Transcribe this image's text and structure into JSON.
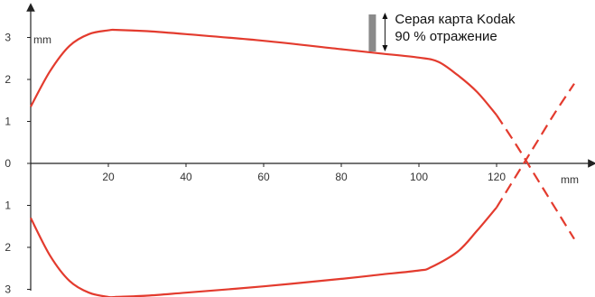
{
  "chart_data": {
    "type": "line",
    "xlabel": "mm",
    "ylabel": "mm",
    "xlim": [
      0,
      140
    ],
    "ylim": [
      -3,
      3
    ],
    "x_ticks": [
      20,
      40,
      60,
      80,
      100,
      120
    ],
    "x_tick_labels": [
      "20",
      "40",
      "60",
      "80",
      "100",
      "120"
    ],
    "y_ticks": [
      3,
      2,
      1,
      0,
      -1,
      -2,
      -3
    ],
    "y_tick_labels": [
      "3",
      "2",
      "1",
      "0",
      "1",
      "2",
      "3"
    ],
    "annotation": {
      "lines": [
        "Серая карта Kodak",
        "90 % отражение"
      ],
      "x": 88,
      "y": 3.15
    },
    "series": [
      {
        "part": "upper-solid",
        "style": "solid",
        "x": [
          0,
          5,
          10,
          15,
          20,
          22,
          30,
          40,
          60,
          80,
          90,
          100,
          105,
          110,
          115,
          120
        ],
        "y": [
          1.35,
          2.2,
          2.8,
          3.08,
          3.17,
          3.18,
          3.15,
          3.08,
          2.92,
          2.72,
          2.62,
          2.52,
          2.42,
          2.1,
          1.7,
          1.15
        ]
      },
      {
        "part": "upper-dashed",
        "style": "dashed",
        "x": [
          120,
          125,
          130,
          135,
          140
        ],
        "y": [
          1.15,
          0.45,
          -0.3,
          -1.05,
          -1.8
        ]
      },
      {
        "part": "lower-solid",
        "style": "solid",
        "x": [
          0,
          5,
          10,
          15,
          20,
          22,
          30,
          40,
          60,
          80,
          90,
          100,
          103,
          110,
          115,
          120
        ],
        "y": [
          -1.3,
          -2.2,
          -2.8,
          -3.08,
          -3.18,
          -3.18,
          -3.15,
          -3.08,
          -2.93,
          -2.75,
          -2.65,
          -2.55,
          -2.48,
          -2.1,
          -1.6,
          -1.05
        ]
      },
      {
        "part": "lower-dashed",
        "style": "dashed",
        "x": [
          120,
          125,
          130,
          135,
          140
        ],
        "y": [
          -1.05,
          -0.3,
          0.45,
          1.2,
          1.9
        ]
      }
    ],
    "colors": {
      "curve": "#e33b2e",
      "axis": "#222222",
      "tick_text": "#333333",
      "bar": "#8a8a8a"
    },
    "grid": false,
    "legend": "none"
  }
}
